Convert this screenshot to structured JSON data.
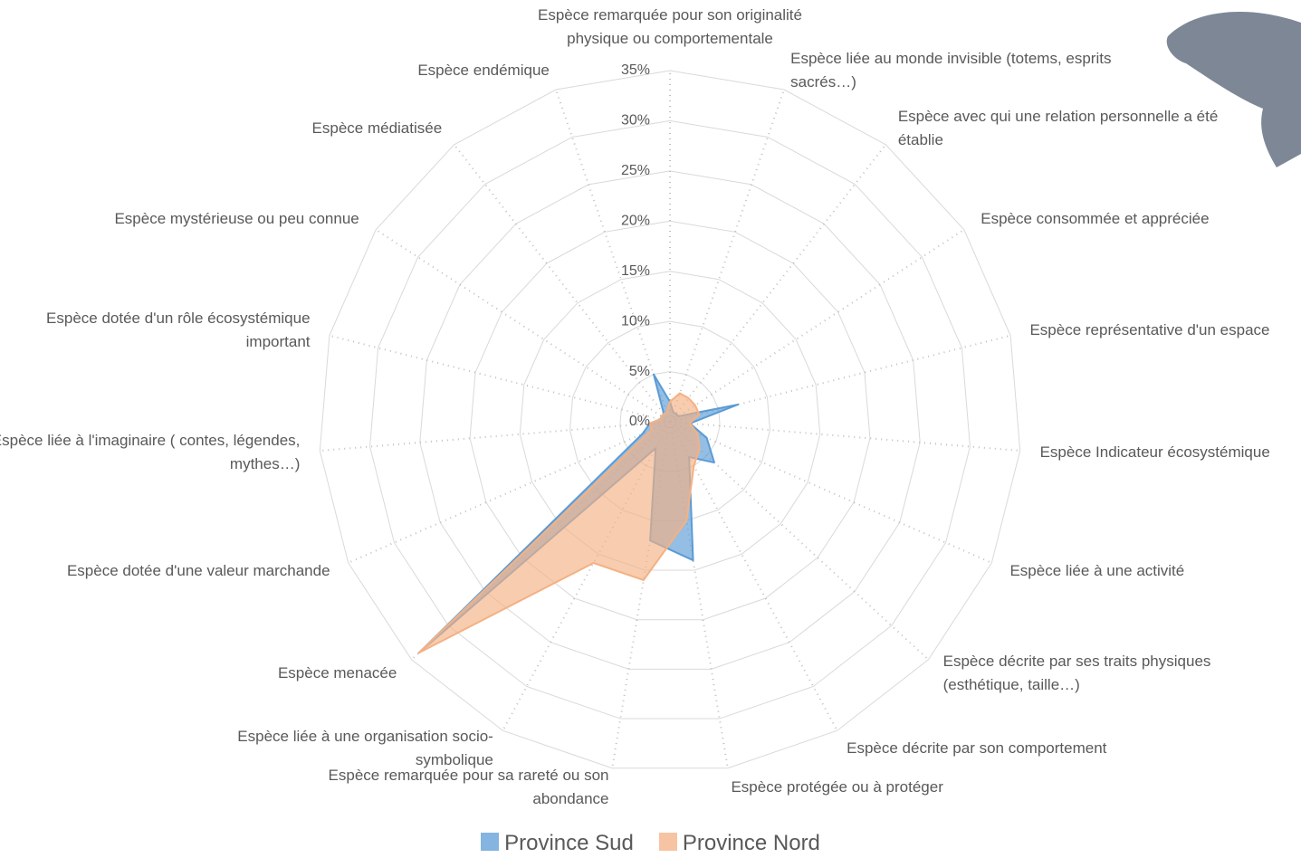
{
  "chart_data": {
    "type": "radar",
    "categories": [
      "Espèce remarquée pour son originalité physique ou comportementale",
      "Espèce liée au monde invisible (totems, esprits sacrés…)",
      "Espèce avec qui une relation personnelle a été établie",
      "Espèce consommée et appréciée",
      "Espèce représentative d'un espace",
      "Espèce Indicateur écosystémique",
      "Espèce liée à une activité",
      "Espèce décrite par ses traits physiques (esthétique, taille…)",
      "Espèce décrite par son comportement",
      "Espèce protégée ou à protéger",
      "Espèce remarquée pour sa rareté ou son abondance",
      "Espèce liée à une organisation socio-symbolique",
      "Espèce menacée",
      "Espèce dotée d'une valeur marchande",
      "Espèce liée à l'imaginaire ( contes, légendes, mythes…)",
      "Espèce dotée d'un rôle écosystémique important",
      "Espèce mystérieuse ou peu connue",
      "Espèce médiatisée",
      "Espèce endémique"
    ],
    "series": [
      {
        "name": "Province Sud",
        "color": "#5b9bd5",
        "values": [
          2,
          1,
          1,
          1,
          7,
          2,
          4,
          6,
          4,
          14,
          12,
          3,
          34,
          3,
          2,
          1,
          1,
          1,
          5
        ]
      },
      {
        "name": "Province Nord",
        "color": "#f4b183",
        "values": [
          2,
          3,
          3,
          3,
          3,
          2,
          3,
          4,
          5,
          10,
          16,
          16,
          34,
          2,
          2,
          1,
          1,
          1,
          1
        ]
      }
    ],
    "ylim": [
      0,
      35
    ],
    "yticks": [
      {
        "value": 0,
        "label": "0%"
      },
      {
        "value": 5,
        "label": "5%"
      },
      {
        "value": 10,
        "label": "10%"
      },
      {
        "value": 15,
        "label": "15%"
      },
      {
        "value": 20,
        "label": "20%"
      },
      {
        "value": 25,
        "label": "25%"
      },
      {
        "value": 30,
        "label": "30%"
      },
      {
        "value": 35,
        "label": "35%"
      }
    ],
    "grid": true,
    "legend": "bottom"
  }
}
